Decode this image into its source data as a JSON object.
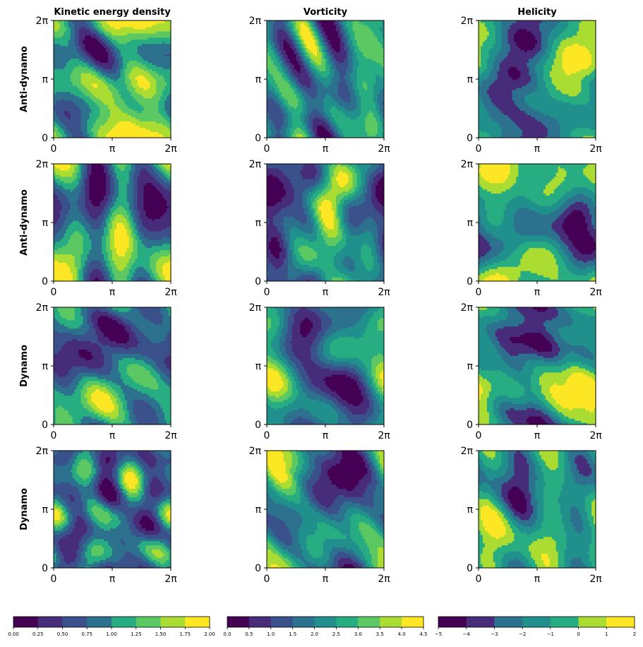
{
  "chart_data": {
    "type": "heatmap",
    "columns": [
      {
        "title": "Kinetic energy density",
        "colorbar_ticks": [
          "0.00",
          "0.25",
          "0.50",
          "0.75",
          "1.00",
          "1.25",
          "1.50",
          "1.75",
          "2.00"
        ],
        "levels": [
          0,
          0.25,
          0.5,
          0.75,
          1.0,
          1.25,
          1.5,
          1.75,
          2.0
        ]
      },
      {
        "title": "Vorticity",
        "colorbar_ticks": [
          "0.0",
          "0.5",
          "1.0",
          "1.5",
          "2.0",
          "2.5",
          "3.0",
          "3.5",
          "4.0",
          "4.5"
        ],
        "levels": [
          0,
          0.5,
          1.0,
          1.5,
          2.0,
          2.5,
          3.0,
          3.5,
          4.0,
          4.5
        ]
      },
      {
        "title": "Helicity",
        "colorbar_ticks": [
          "−5",
          "−4",
          "−3",
          "−2",
          "−1",
          "0",
          "1",
          "2"
        ],
        "levels": [
          -5,
          -4,
          -3,
          -2,
          -1,
          0,
          1,
          2
        ]
      }
    ],
    "rows": [
      {
        "label": "Anti-dynamo"
      },
      {
        "label": "Anti-dynamo"
      },
      {
        "label": "Dynamo"
      },
      {
        "label": "Dynamo"
      }
    ],
    "axis_ticks": [
      "0",
      "π",
      "2π"
    ],
    "xlim": [
      0,
      6.2832
    ],
    "ylim": [
      0,
      6.2832
    ],
    "colormap": "viridis",
    "palette": [
      "#440154",
      "#472c7a",
      "#3b518b",
      "#2c718e",
      "#21908d",
      "#27ad81",
      "#5cc863",
      "#aadc32",
      "#fde725"
    ]
  }
}
